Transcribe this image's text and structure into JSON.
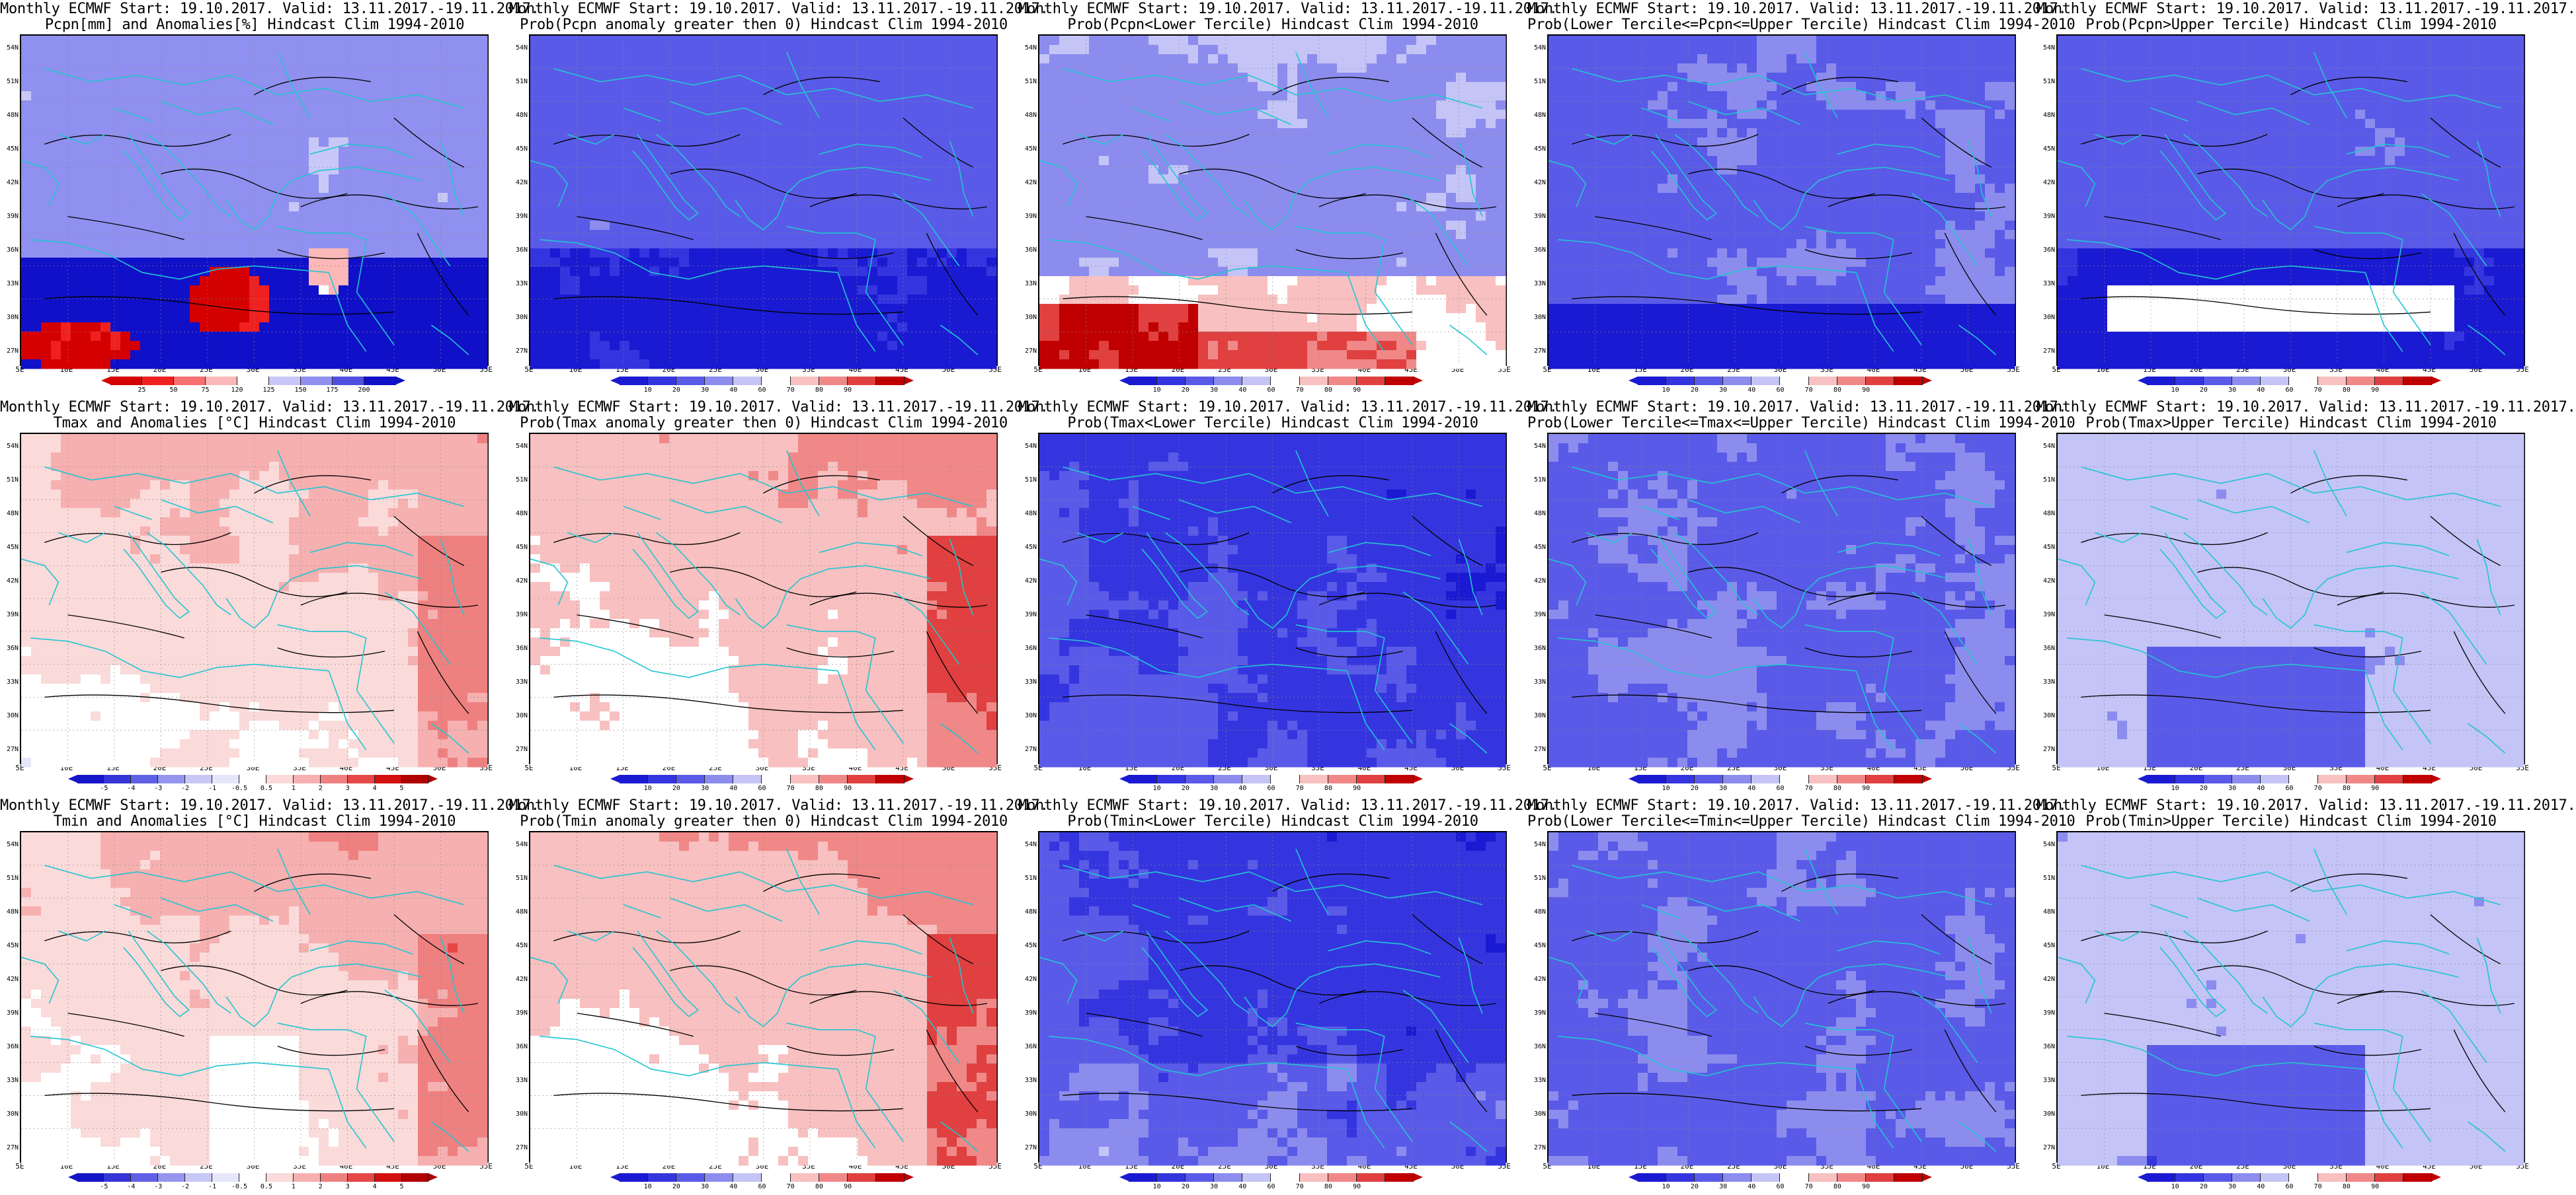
{
  "panels": [
    {
      "line1": "Monthly ECMWF Start: 19.10.2017. Valid: 13.11.2017.-19.11.2017.",
      "line2": "Pcpn[mm] and Anomalies[%] Hindcast Clim 1994-2010",
      "palette": "pcpn",
      "field": "pcpn_anom",
      "cbar_labels": [
        "25",
        "50",
        "75",
        "120",
        "125",
        "150",
        "175",
        "200"
      ]
    },
    {
      "line1": "Monthly ECMWF Start: 19.10.2017. Valid: 13.11.2017.-19.11.2017.",
      "line2": "Prob(Pcpn anomaly greater then 0) Hindcast Clim 1994-2010",
      "palette": "prob",
      "field": "pcpn_pos",
      "cbar_labels": [
        "10",
        "20",
        "30",
        "40",
        "60",
        "70",
        "80",
        "90"
      ]
    },
    {
      "line1": "Monthly ECMWF Start: 19.10.2017. Valid: 13.11.2017.-19.11.2017.",
      "line2": "Prob(Pcpn<Lower Tercile) Hindcast Clim 1994-2010",
      "palette": "prob",
      "field": "pcpn_lower",
      "cbar_labels": [
        "10",
        "20",
        "30",
        "40",
        "60",
        "70",
        "80",
        "90"
      ]
    },
    {
      "line1": "Monthly ECMWF Start: 19.10.2017. Valid: 13.11.2017.-19.11.2017.",
      "line2": "Prob(Lower Tercile<=Pcpn<=Upper Tercile) Hindcast Clim 1994-2010",
      "palette": "prob",
      "field": "pcpn_mid",
      "cbar_labels": [
        "10",
        "20",
        "30",
        "40",
        "60",
        "70",
        "80",
        "90"
      ]
    },
    {
      "line1": "Monthly ECMWF Start: 19.10.2017. Valid: 13.11.2017.-19.11.2017.",
      "line2": "Prob(Pcpn>Upper Tercile) Hindcast Clim 1994-2010",
      "palette": "prob",
      "field": "pcpn_upper",
      "cbar_labels": [
        "10",
        "20",
        "30",
        "40",
        "60",
        "70",
        "80",
        "90"
      ]
    },
    {
      "line1": "Monthly ECMWF Start: 19.10.2017. Valid: 13.11.2017.-19.11.2017.",
      "line2": "Tmax and Anomalies [°C] Hindcast Clim 1994-2010",
      "palette": "temp",
      "field": "tmax_anom",
      "cbar_labels": [
        "-5",
        "-4",
        "-3",
        "-2",
        "-1",
        "-0.5",
        "0.5",
        "1",
        "2",
        "3",
        "4",
        "5"
      ]
    },
    {
      "line1": "Monthly ECMWF Start: 19.10.2017. Valid: 13.11.2017.-19.11.2017.",
      "line2": "Prob(Tmax anomaly greater then 0) Hindcast Clim 1994-2010",
      "palette": "prob",
      "field": "tmax_pos",
      "cbar_labels": [
        "10",
        "20",
        "30",
        "40",
        "60",
        "70",
        "80",
        "90"
      ]
    },
    {
      "line1": "Monthly ECMWF Start: 19.10.2017. Valid: 13.11.2017.-19.11.2017.",
      "line2": "Prob(Tmax<Lower Tercile) Hindcast Clim 1994-2010",
      "palette": "prob",
      "field": "tmax_lower",
      "cbar_labels": [
        "10",
        "20",
        "30",
        "40",
        "60",
        "70",
        "80",
        "90"
      ]
    },
    {
      "line1": "Monthly ECMWF Start: 19.10.2017. Valid: 13.11.2017.-19.11.2017.",
      "line2": "Prob(Lower Tercile<=Tmax<=Upper Tercile) Hindcast Clim 1994-2010",
      "palette": "prob",
      "field": "tmax_mid",
      "cbar_labels": [
        "10",
        "20",
        "30",
        "40",
        "60",
        "70",
        "80",
        "90"
      ]
    },
    {
      "line1": "Monthly ECMWF Start: 19.10.2017. Valid: 13.11.2017.-19.11.2017.",
      "line2": "Prob(Tmax>Upper Tercile) Hindcast Clim 1994-2010",
      "palette": "prob",
      "field": "tmax_upper",
      "cbar_labels": [
        "10",
        "20",
        "30",
        "40",
        "60",
        "70",
        "80",
        "90"
      ]
    },
    {
      "line1": "Monthly ECMWF Start: 19.10.2017. Valid: 13.11.2017.-19.11.2017.",
      "line2": "Tmin and Anomalies [°C] Hindcast Clim 1994-2010",
      "palette": "temp",
      "field": "tmin_anom",
      "cbar_labels": [
        "-5",
        "-4",
        "-3",
        "-2",
        "-1",
        "-0.5",
        "0.5",
        "1",
        "2",
        "3",
        "4",
        "5"
      ]
    },
    {
      "line1": "Monthly ECMWF Start: 19.10.2017. Valid: 13.11.2017.-19.11.2017.",
      "line2": "Prob(Tmin anomaly greater then 0) Hindcast Clim 1994-2010",
      "palette": "prob",
      "field": "tmin_pos",
      "cbar_labels": [
        "10",
        "20",
        "30",
        "40",
        "60",
        "70",
        "80",
        "90"
      ]
    },
    {
      "line1": "Monthly ECMWF Start: 19.10.2017. Valid: 13.11.2017.-19.11.2017.",
      "line2": "Prob(Tmin<Lower Tercile) Hindcast Clim 1994-2010",
      "palette": "prob",
      "field": "tmin_lower",
      "cbar_labels": [
        "10",
        "20",
        "30",
        "40",
        "60",
        "70",
        "80",
        "90"
      ]
    },
    {
      "line1": "Monthly ECMWF Start: 19.10.2017. Valid: 13.11.2017.-19.11.2017.",
      "line2": "Prob(Lower Tercile<=Tmin<=Upper Tercile) Hindcast Clim 1994-2010",
      "palette": "prob",
      "field": "tmin_mid",
      "cbar_labels": [
        "10",
        "20",
        "30",
        "40",
        "60",
        "70",
        "80",
        "90"
      ]
    },
    {
      "line1": "Monthly ECMWF Start: 19.10.2017. Valid: 13.11.2017.-19.11.2017.",
      "line2": "Prob(Tmin>Upper Tercile) Hindcast Clim 1994-2010",
      "palette": "prob",
      "field": "tmin_upper",
      "cbar_labels": [
        "10",
        "20",
        "30",
        "40",
        "60",
        "70",
        "80",
        "90"
      ]
    }
  ],
  "lat_labels": [
    "54N",
    "51N",
    "48N",
    "45N",
    "42N",
    "39N",
    "36N",
    "33N",
    "30N",
    "27N"
  ],
  "lon_labels": [
    "5E",
    "10E",
    "15E",
    "20E",
    "25E",
    "30E",
    "35E",
    "40E",
    "45E",
    "50E",
    "55E"
  ],
  "colors": {
    "pcpn": [
      "#d40000",
      "#f02020",
      "#f87070",
      "#fcb8b8",
      "#ffffff",
      "#c8c8f8",
      "#9090f0",
      "#5050e0",
      "#1010c8"
    ],
    "prob": [
      "#1a1ad2",
      "#3535e0",
      "#5a5ae8",
      "#8c8cef",
      "#c4c4f7",
      "#ffffff",
      "#f8c0c0",
      "#f08888",
      "#e04040",
      "#c00000"
    ],
    "temp": [
      "#1515c8",
      "#3535d8",
      "#6060e4",
      "#9595ee",
      "#c8c8f6",
      "#e6e6fb",
      "#ffffff",
      "#fbdada",
      "#f6b0b0",
      "#ef8080",
      "#e64848",
      "#d21010",
      "#b00000"
    ],
    "coast": "#22c5d0",
    "contour": "#000000"
  }
}
